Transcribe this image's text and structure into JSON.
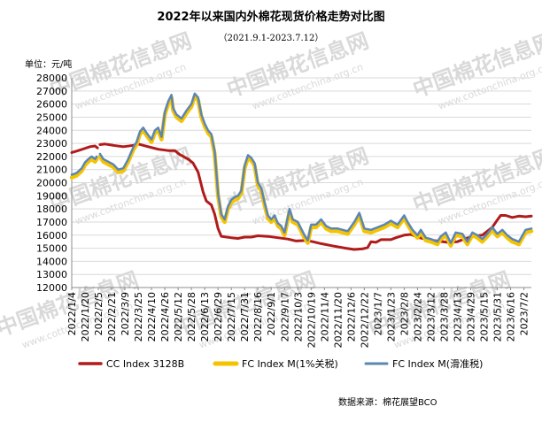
{
  "header": {
    "title": "2022年以来国内外棉花现货价格走势对比图",
    "subtitle": "（2021.9.1-2023.7.12）",
    "unit": "单位：元/吨"
  },
  "watermark": {
    "cn": "中国棉花信息网",
    "en": "www.cottonchina.org.cn",
    "color": "#d9d9d9"
  },
  "source": "数据来源：棉花展望BCO",
  "chart_data": {
    "type": "line",
    "ylim": [
      12000,
      28000
    ],
    "yticks": [
      12000,
      13000,
      14000,
      15000,
      16000,
      17000,
      18000,
      19000,
      20000,
      21000,
      22000,
      23000,
      24000,
      25000,
      26000,
      27000,
      28000
    ],
    "x_tick_labels": [
      "2022/1/4",
      "2022/1/20",
      "2022/2/5",
      "2022/2/21",
      "2022/3/9",
      "2022/3/25",
      "2022/4/10",
      "2022/4/26",
      "2022/5/12",
      "2022/5/28",
      "2022/6/13",
      "2022/6/29",
      "2022/7/15",
      "2022/7/31",
      "2022/8/16",
      "2022/9/1",
      "2022/9/17",
      "2022/10/3",
      "2022/10/19",
      "2022/11/4",
      "2022/11/20",
      "2022/12/6",
      "2022/12/22",
      "2023/1/7",
      "2023/1/23",
      "2023/2/8",
      "2023/2/24",
      "2023/3/12",
      "2023/3/28",
      "2023/4/13",
      "2023/4/29",
      "2023/5/15",
      "2023/5/31",
      "2023/6/16",
      "2023/7/2"
    ],
    "x_ticks": [
      0,
      16,
      32,
      48,
      64,
      80,
      96,
      112,
      128,
      144,
      160,
      176,
      192,
      208,
      224,
      240,
      256,
      272,
      288,
      304,
      320,
      336,
      352,
      368,
      384,
      400,
      416,
      432,
      448,
      464,
      480,
      496,
      512,
      528,
      544
    ],
    "x_range": [
      0,
      553
    ],
    "series": [
      {
        "name": "CC Index 3128B",
        "color": "#b01b1b",
        "points": [
          [
            0,
            22300
          ],
          [
            8,
            22450
          ],
          [
            15,
            22600
          ],
          [
            22,
            22750
          ],
          [
            28,
            22800
          ],
          [
            31,
            22650
          ],
          [
            32,
            null
          ],
          [
            34,
            22900
          ],
          [
            40,
            22950
          ],
          [
            50,
            22850
          ],
          [
            62,
            22750
          ],
          [
            74,
            22850
          ],
          [
            80,
            22950
          ],
          [
            92,
            22750
          ],
          [
            104,
            22550
          ],
          [
            116,
            22450
          ],
          [
            124,
            22450
          ],
          [
            130,
            22150
          ],
          [
            140,
            21800
          ],
          [
            146,
            21500
          ],
          [
            152,
            20800
          ],
          [
            158,
            19300
          ],
          [
            162,
            18600
          ],
          [
            168,
            18300
          ],
          [
            172,
            17600
          ],
          [
            176,
            16500
          ],
          [
            180,
            15900
          ],
          [
            192,
            15800
          ],
          [
            200,
            15750
          ],
          [
            208,
            15850
          ],
          [
            216,
            15850
          ],
          [
            224,
            15950
          ],
          [
            236,
            15900
          ],
          [
            248,
            15800
          ],
          [
            260,
            15700
          ],
          [
            270,
            15550
          ],
          [
            282,
            15600
          ],
          [
            290,
            15500
          ],
          [
            300,
            15350
          ],
          [
            316,
            15150
          ],
          [
            330,
            15000
          ],
          [
            340,
            14900
          ],
          [
            350,
            14950
          ],
          [
            356,
            15050
          ],
          [
            360,
            15500
          ],
          [
            366,
            15450
          ],
          [
            372,
            15650
          ],
          [
            384,
            15650
          ],
          [
            390,
            15800
          ],
          [
            400,
            16000
          ],
          [
            408,
            16050
          ],
          [
            416,
            15850
          ],
          [
            428,
            15650
          ],
          [
            440,
            15550
          ],
          [
            452,
            15450
          ],
          [
            464,
            15500
          ],
          [
            472,
            15700
          ],
          [
            482,
            15900
          ],
          [
            494,
            16000
          ],
          [
            500,
            16300
          ],
          [
            506,
            16600
          ],
          [
            512,
            17150
          ],
          [
            516,
            17500
          ],
          [
            522,
            17500
          ],
          [
            530,
            17350
          ],
          [
            538,
            17450
          ],
          [
            546,
            17400
          ],
          [
            553,
            17450
          ]
        ]
      },
      {
        "name": "FC Index M(1%关税)",
        "color": "#f5c400",
        "points": [
          [
            0,
            20400
          ],
          [
            6,
            20550
          ],
          [
            12,
            20900
          ],
          [
            16,
            21350
          ],
          [
            20,
            21600
          ],
          [
            24,
            21800
          ],
          [
            28,
            21600
          ],
          [
            30,
            21800
          ],
          [
            32,
            null
          ],
          [
            34,
            22000
          ],
          [
            38,
            21600
          ],
          [
            44,
            21400
          ],
          [
            50,
            21200
          ],
          [
            56,
            20800
          ],
          [
            62,
            20900
          ],
          [
            68,
            21600
          ],
          [
            74,
            22500
          ],
          [
            78,
            22900
          ],
          [
            82,
            23700
          ],
          [
            86,
            24000
          ],
          [
            90,
            23600
          ],
          [
            96,
            23100
          ],
          [
            100,
            23800
          ],
          [
            104,
            24000
          ],
          [
            108,
            23300
          ],
          [
            112,
            25200
          ],
          [
            116,
            26000
          ],
          [
            120,
            26500
          ],
          [
            122,
            25500
          ],
          [
            126,
            25000
          ],
          [
            132,
            24700
          ],
          [
            138,
            25300
          ],
          [
            144,
            25800
          ],
          [
            148,
            26600
          ],
          [
            152,
            26300
          ],
          [
            156,
            25000
          ],
          [
            160,
            24300
          ],
          [
            164,
            23800
          ],
          [
            168,
            23500
          ],
          [
            172,
            22200
          ],
          [
            176,
            19000
          ],
          [
            180,
            17400
          ],
          [
            184,
            17000
          ],
          [
            188,
            18000
          ],
          [
            192,
            18500
          ],
          [
            196,
            18700
          ],
          [
            200,
            18800
          ],
          [
            204,
            19200
          ],
          [
            208,
            21100
          ],
          [
            212,
            21900
          ],
          [
            216,
            21700
          ],
          [
            220,
            21300
          ],
          [
            224,
            19800
          ],
          [
            228,
            19400
          ],
          [
            232,
            18300
          ],
          [
            236,
            17300
          ],
          [
            240,
            17000
          ],
          [
            244,
            17300
          ],
          [
            248,
            16700
          ],
          [
            252,
            16500
          ],
          [
            256,
            16000
          ],
          [
            262,
            17800
          ],
          [
            266,
            17000
          ],
          [
            272,
            16800
          ],
          [
            280,
            15800
          ],
          [
            284,
            15400
          ],
          [
            288,
            16600
          ],
          [
            294,
            16600
          ],
          [
            300,
            17000
          ],
          [
            306,
            16500
          ],
          [
            312,
            16300
          ],
          [
            320,
            16300
          ],
          [
            326,
            16200
          ],
          [
            332,
            16100
          ],
          [
            340,
            16800
          ],
          [
            346,
            17500
          ],
          [
            352,
            16300
          ],
          [
            360,
            16200
          ],
          [
            368,
            16400
          ],
          [
            376,
            16600
          ],
          [
            384,
            16900
          ],
          [
            392,
            16600
          ],
          [
            400,
            17300
          ],
          [
            404,
            16800
          ],
          [
            410,
            16200
          ],
          [
            416,
            15800
          ],
          [
            420,
            16200
          ],
          [
            426,
            15600
          ],
          [
            432,
            15500
          ],
          [
            440,
            15300
          ],
          [
            444,
            15700
          ],
          [
            450,
            16000
          ],
          [
            456,
            15200
          ],
          [
            462,
            16000
          ],
          [
            470,
            15900
          ],
          [
            476,
            15300
          ],
          [
            482,
            16000
          ],
          [
            488,
            15800
          ],
          [
            494,
            15500
          ],
          [
            500,
            15900
          ],
          [
            506,
            16400
          ],
          [
            512,
            15900
          ],
          [
            518,
            16200
          ],
          [
            524,
            15800
          ],
          [
            530,
            15500
          ],
          [
            538,
            15300
          ],
          [
            546,
            16200
          ],
          [
            553,
            16300
          ]
        ]
      },
      {
        "name": "FC Index M(滑准税)",
        "color": "#5b86b6",
        "points": [
          [
            0,
            20600
          ],
          [
            6,
            20750
          ],
          [
            12,
            21100
          ],
          [
            16,
            21550
          ],
          [
            20,
            21800
          ],
          [
            24,
            22000
          ],
          [
            28,
            21800
          ],
          [
            30,
            22000
          ],
          [
            32,
            null
          ],
          [
            34,
            22200
          ],
          [
            38,
            21800
          ],
          [
            44,
            21600
          ],
          [
            50,
            21400
          ],
          [
            56,
            21000
          ],
          [
            62,
            21100
          ],
          [
            68,
            21800
          ],
          [
            74,
            22700
          ],
          [
            78,
            23100
          ],
          [
            82,
            23900
          ],
          [
            86,
            24200
          ],
          [
            90,
            23800
          ],
          [
            96,
            23300
          ],
          [
            100,
            24000
          ],
          [
            104,
            24200
          ],
          [
            108,
            23500
          ],
          [
            112,
            25400
          ],
          [
            116,
            26200
          ],
          [
            120,
            26700
          ],
          [
            122,
            25700
          ],
          [
            126,
            25200
          ],
          [
            132,
            24900
          ],
          [
            138,
            25500
          ],
          [
            144,
            26000
          ],
          [
            148,
            26800
          ],
          [
            152,
            26500
          ],
          [
            156,
            25200
          ],
          [
            160,
            24500
          ],
          [
            164,
            24000
          ],
          [
            168,
            23700
          ],
          [
            172,
            22400
          ],
          [
            176,
            19200
          ],
          [
            180,
            17600
          ],
          [
            184,
            17200
          ],
          [
            188,
            18200
          ],
          [
            192,
            18700
          ],
          [
            196,
            18900
          ],
          [
            200,
            19000
          ],
          [
            204,
            19400
          ],
          [
            208,
            21300
          ],
          [
            212,
            22100
          ],
          [
            216,
            21900
          ],
          [
            220,
            21500
          ],
          [
            224,
            20000
          ],
          [
            228,
            19600
          ],
          [
            232,
            18500
          ],
          [
            236,
            17500
          ],
          [
            240,
            17200
          ],
          [
            244,
            17500
          ],
          [
            248,
            16900
          ],
          [
            252,
            16700
          ],
          [
            256,
            16200
          ],
          [
            262,
            18000
          ],
          [
            266,
            17200
          ],
          [
            272,
            17000
          ],
          [
            280,
            16000
          ],
          [
            284,
            15600
          ],
          [
            288,
            16800
          ],
          [
            294,
            16800
          ],
          [
            300,
            17200
          ],
          [
            306,
            16700
          ],
          [
            312,
            16500
          ],
          [
            320,
            16500
          ],
          [
            326,
            16400
          ],
          [
            332,
            16300
          ],
          [
            340,
            17000
          ],
          [
            346,
            17700
          ],
          [
            352,
            16500
          ],
          [
            360,
            16400
          ],
          [
            368,
            16600
          ],
          [
            376,
            16800
          ],
          [
            384,
            17100
          ],
          [
            392,
            16800
          ],
          [
            400,
            17500
          ],
          [
            404,
            17000
          ],
          [
            410,
            16400
          ],
          [
            416,
            16000
          ],
          [
            420,
            16400
          ],
          [
            426,
            15800
          ],
          [
            432,
            15700
          ],
          [
            440,
            15500
          ],
          [
            444,
            15900
          ],
          [
            450,
            16200
          ],
          [
            456,
            15400
          ],
          [
            462,
            16200
          ],
          [
            470,
            16100
          ],
          [
            476,
            15500
          ],
          [
            482,
            16200
          ],
          [
            488,
            16000
          ],
          [
            494,
            15700
          ],
          [
            500,
            16100
          ],
          [
            506,
            16600
          ],
          [
            512,
            16100
          ],
          [
            518,
            16400
          ],
          [
            524,
            16000
          ],
          [
            530,
            15700
          ],
          [
            538,
            15500
          ],
          [
            546,
            16400
          ],
          [
            553,
            16500
          ]
        ]
      }
    ]
  }
}
